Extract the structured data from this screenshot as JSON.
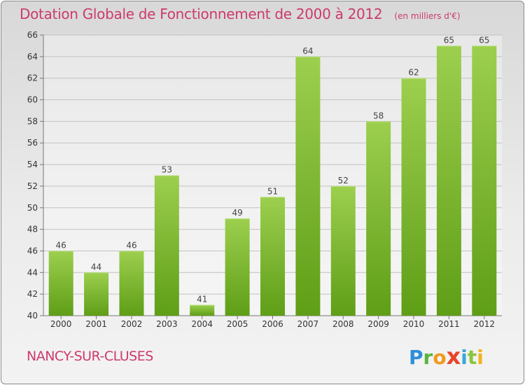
{
  "header": {
    "title": "Dotation Globale de Fonctionnement de 2000 à 2012",
    "unit": "(en milliers d'€)"
  },
  "footer": {
    "commune": "NANCY-SUR-CLUSES",
    "logo": "Proxiti"
  },
  "colors": {
    "accent_text": "#cc3a6e",
    "bar_light": "#9ccf4e",
    "bar_dark": "#5f9e17"
  },
  "chart_data": {
    "type": "bar",
    "title": "Dotation Globale de Fonctionnement de 2000 à 2012",
    "subtitle": "(en milliers d'€)",
    "xlabel": "",
    "ylabel": "",
    "categories": [
      "2000",
      "2001",
      "2002",
      "2003",
      "2004",
      "2005",
      "2006",
      "2007",
      "2008",
      "2009",
      "2010",
      "2011",
      "2012"
    ],
    "values": [
      46,
      44,
      46,
      53,
      41,
      49,
      51,
      64,
      52,
      58,
      62,
      65,
      65
    ],
    "ylim": [
      40,
      66
    ],
    "yticks": [
      40,
      42,
      44,
      46,
      48,
      50,
      52,
      54,
      56,
      58,
      60,
      62,
      64,
      66
    ],
    "grid": true,
    "data_labels": true,
    "legend": "none"
  }
}
